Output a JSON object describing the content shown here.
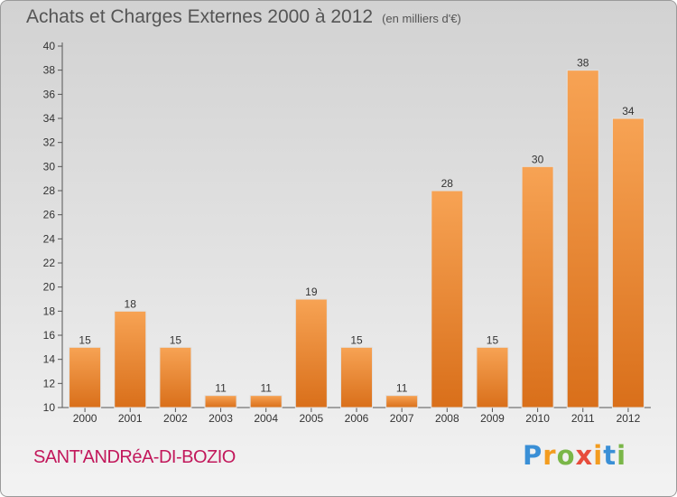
{
  "header": {
    "title": "Achats et Charges Externes 2000 à 2012",
    "unit": "(en milliers d'€)"
  },
  "footer": {
    "commune": "SANT'ANDRéA-DI-BOZIO",
    "brand_letters": [
      "P",
      "r",
      "o",
      "x",
      "i",
      "t",
      "i"
    ],
    "brand_colors": [
      "#3a8fd6",
      "#f39c1f",
      "#7ab648",
      "#e74c3c",
      "#f39c1f",
      "#3a8fd6",
      "#7ab648"
    ]
  },
  "chart_data": {
    "type": "bar",
    "categories": [
      "2000",
      "2001",
      "2002",
      "2003",
      "2004",
      "2005",
      "2006",
      "2007",
      "2008",
      "2009",
      "2010",
      "2011",
      "2012"
    ],
    "values": [
      15,
      18,
      15,
      11,
      11,
      19,
      15,
      11,
      28,
      15,
      30,
      38,
      34
    ],
    "data_labels": [
      "15",
      "18",
      "15",
      "11",
      "11",
      "19",
      "15",
      "11",
      "28",
      "15",
      "30",
      "38",
      "34"
    ],
    "title": "Achats et Charges Externes 2000 à 2012",
    "xlabel": "",
    "ylabel": "",
    "ylim": [
      10,
      40
    ],
    "yticks": [
      10,
      12,
      14,
      16,
      18,
      20,
      22,
      24,
      26,
      28,
      30,
      32,
      34,
      36,
      38,
      40
    ],
    "grid": false,
    "bar_color_light": "#f7a354",
    "bar_color_dark": "#d96f1a"
  }
}
